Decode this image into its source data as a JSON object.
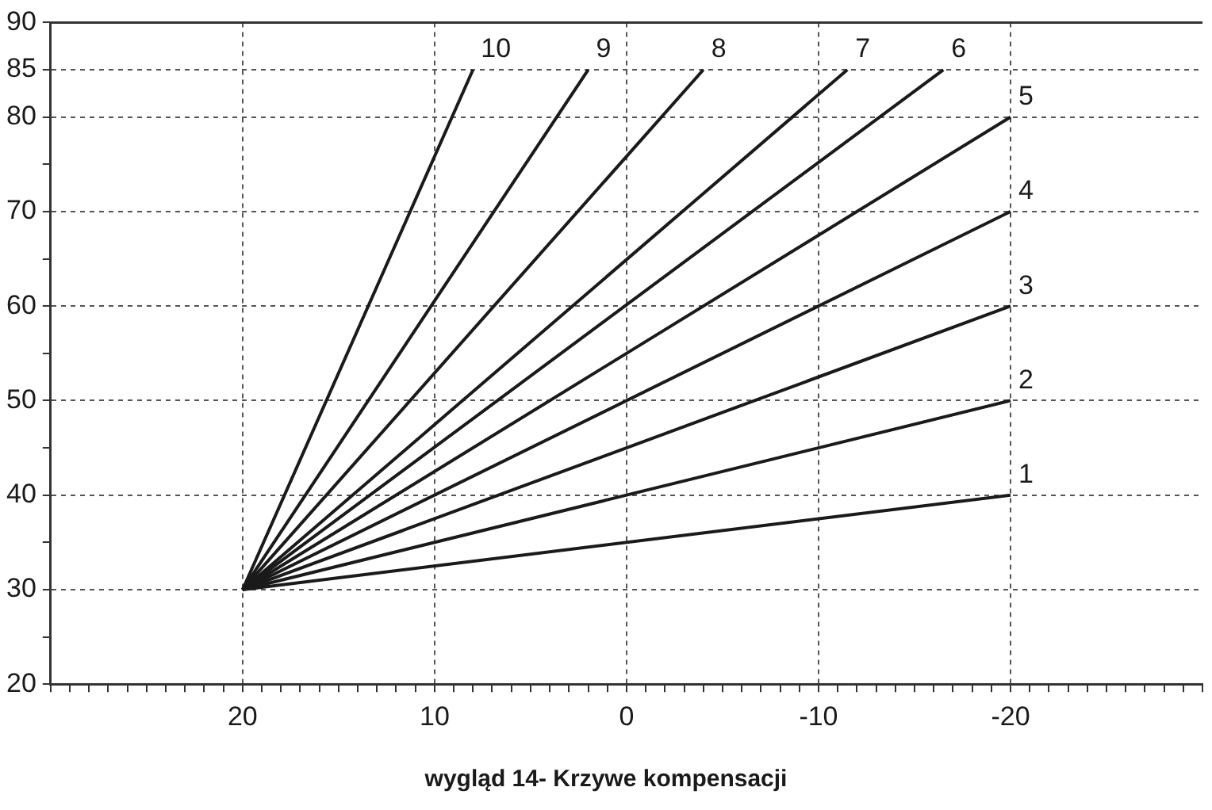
{
  "chart_data": {
    "type": "line",
    "title": "wygląd 14- Krzywe kompensacji",
    "xlim": [
      30,
      -30
    ],
    "xticks": [
      {
        "value": 30,
        "label": null
      },
      {
        "value": 29,
        "label": null
      },
      {
        "value": 28,
        "label": null
      },
      {
        "value": 27,
        "label": null
      },
      {
        "value": 26,
        "label": null
      },
      {
        "value": 25,
        "label": null
      },
      {
        "value": 24,
        "label": null
      },
      {
        "value": 23,
        "label": null
      },
      {
        "value": 22,
        "label": null
      },
      {
        "value": 21,
        "label": null
      },
      20,
      {
        "value": 19,
        "label": null
      },
      {
        "value": 18,
        "label": null
      },
      {
        "value": 17,
        "label": null
      },
      {
        "value": 16,
        "label": null
      },
      {
        "value": 15,
        "label": null
      },
      {
        "value": 14,
        "label": null
      },
      {
        "value": 13,
        "label": null
      },
      {
        "value": 12,
        "label": null
      },
      {
        "value": 11,
        "label": null
      },
      10,
      {
        "value": 9,
        "label": null
      },
      {
        "value": 8,
        "label": null
      },
      {
        "value": 7,
        "label": null
      },
      {
        "value": 6,
        "label": null
      },
      {
        "value": 5,
        "label": null
      },
      {
        "value": 4,
        "label": null
      },
      {
        "value": 3,
        "label": null
      },
      {
        "value": 2,
        "label": null
      },
      {
        "value": 1,
        "label": null
      },
      0,
      {
        "value": -1,
        "label": null
      },
      {
        "value": -2,
        "label": null
      },
      {
        "value": -3,
        "label": null
      },
      {
        "value": -4,
        "label": null
      },
      {
        "value": -5,
        "label": null
      },
      {
        "value": -6,
        "label": null
      },
      {
        "value": -7,
        "label": null
      },
      {
        "value": -8,
        "label": null
      },
      {
        "value": -9,
        "label": null
      },
      -10,
      {
        "value": -11,
        "label": null
      },
      {
        "value": -12,
        "label": null
      },
      {
        "value": -13,
        "label": null
      },
      {
        "value": -14,
        "label": null
      },
      {
        "value": -15,
        "label": null
      },
      {
        "value": -16,
        "label": null
      },
      {
        "value": -17,
        "label": null
      },
      {
        "value": -18,
        "label": null
      },
      {
        "value": -19,
        "label": null
      },
      -20,
      {
        "value": -21,
        "label": null
      },
      {
        "value": -22,
        "label": null
      },
      {
        "value": -23,
        "label": null
      },
      {
        "value": -24,
        "label": null
      },
      {
        "value": -25,
        "label": null
      },
      {
        "value": -26,
        "label": null
      },
      {
        "value": -27,
        "label": null
      },
      {
        "value": -28,
        "label": null
      },
      {
        "value": -29,
        "label": null
      },
      {
        "value": -30,
        "label": null
      }
    ],
    "ylim": [
      20,
      90
    ],
    "yticks": [
      20,
      {
        "value": 25,
        "label": null
      },
      30,
      {
        "value": 35,
        "label": null
      },
      40,
      {
        "value": 45,
        "label": null
      },
      50,
      {
        "value": 55,
        "label": null
      },
      60,
      {
        "value": 65,
        "label": null
      },
      70,
      {
        "value": 75,
        "label": null
      },
      80,
      85,
      90
    ],
    "grid": true,
    "marker": "none",
    "line_style": "solid",
    "legend": false,
    "series": [
      {
        "name": "1",
        "color": "#1a1a1a",
        "x": [
          20,
          -20
        ],
        "values": [
          30,
          40
        ]
      },
      {
        "name": "2",
        "color": "#1a1a1a",
        "x": [
          20,
          -20
        ],
        "values": [
          30,
          50
        ]
      },
      {
        "name": "3",
        "color": "#1a1a1a",
        "x": [
          20,
          -20
        ],
        "values": [
          30,
          60
        ]
      },
      {
        "name": "4",
        "color": "#1a1a1a",
        "x": [
          20,
          -20
        ],
        "values": [
          30,
          70
        ]
      },
      {
        "name": "5",
        "color": "#1a1a1a",
        "x": [
          20,
          -20
        ],
        "values": [
          30,
          80
        ]
      },
      {
        "name": "6",
        "color": "#1a1a1a",
        "x": [
          20,
          -16.5
        ],
        "values": [
          30,
          85
        ]
      },
      {
        "name": "7",
        "color": "#1a1a1a",
        "x": [
          20,
          -11.5
        ],
        "values": [
          30,
          85
        ]
      },
      {
        "name": "8",
        "color": "#1a1a1a",
        "x": [
          20,
          -4
        ],
        "values": [
          30,
          85
        ]
      },
      {
        "name": "9",
        "color": "#1a1a1a",
        "x": [
          20,
          2
        ],
        "values": [
          30,
          85
        ]
      },
      {
        "name": "10",
        "color": "#1a1a1a",
        "x": [
          20,
          8
        ],
        "values": [
          30,
          85
        ]
      }
    ]
  }
}
